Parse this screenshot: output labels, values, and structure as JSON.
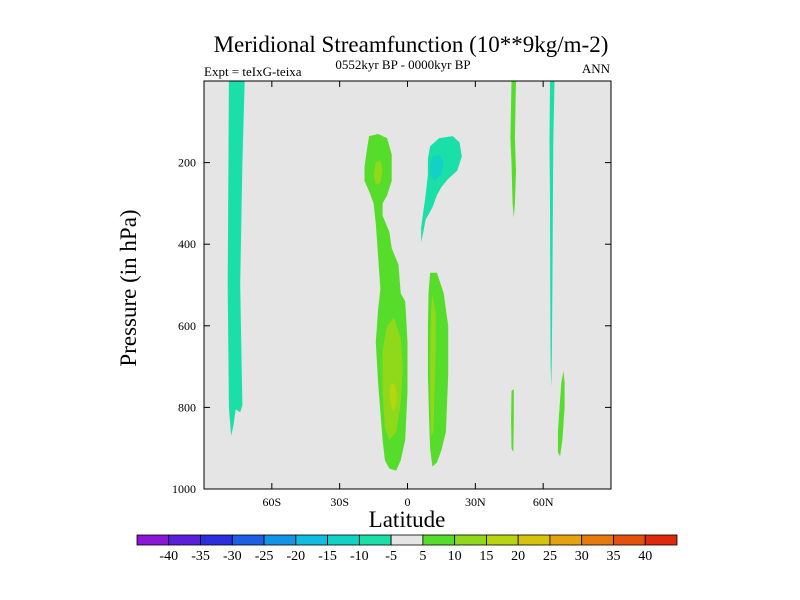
{
  "chart_data": {
    "type": "heatmap",
    "title": "Meridional Streamfunction (10**9kg/m-2)",
    "subtitle_left": "Expt = teIxG-teixa",
    "subtitle_center": "0552kyr BP - 0000kyr BP",
    "subtitle_right": "ANN",
    "xlabel": "Latitude",
    "ylabel": "Pressure (in hPa)",
    "xlim": [
      -90,
      90
    ],
    "ylim": [
      1000,
      0
    ],
    "y_inverted": true,
    "x_ticks": [
      {
        "value": -60,
        "label": "60S"
      },
      {
        "value": -30,
        "label": "30S"
      },
      {
        "value": 0,
        "label": "0"
      },
      {
        "value": 30,
        "label": "30N"
      },
      {
        "value": 60,
        "label": "60N"
      }
    ],
    "y_ticks": [
      {
        "value": 200,
        "label": "200"
      },
      {
        "value": 400,
        "label": "400"
      },
      {
        "value": 600,
        "label": "600"
      },
      {
        "value": 800,
        "label": "800"
      },
      {
        "value": 1000,
        "label": "1000"
      }
    ],
    "background_color": "#e5e5e5",
    "colorbar": {
      "levels": [
        "-40",
        "-35",
        "-30",
        "-25",
        "-20",
        "-15",
        "-10",
        "-5",
        "5",
        "10",
        "15",
        "20",
        "25",
        "30",
        "35",
        "40"
      ],
      "colors": [
        "#8a16d8",
        "#5b1fdc",
        "#2c2fe0",
        "#1e5ee4",
        "#1494e6",
        "#10bde0",
        "#12d2c6",
        "#1ae0a8",
        "#e5e5e5",
        "#56dc2a",
        "#8fd81a",
        "#b9d512",
        "#d6c30e",
        "#e4a20c",
        "#e67a0c",
        "#e4510c",
        "#e0280e"
      ]
    },
    "contour_regions": [
      {
        "band": "-10 to -5",
        "color": "#1ae0a8",
        "points": [
          [
            -79,
            0
          ],
          [
            -72,
            0
          ],
          [
            -73,
            200
          ],
          [
            -74,
            500
          ],
          [
            -73,
            795
          ],
          [
            -74,
            812
          ],
          [
            -76,
            805
          ],
          [
            -77,
            845
          ],
          [
            -78,
            870
          ],
          [
            -79,
            800
          ],
          [
            -79.5,
            500
          ]
        ]
      },
      {
        "band": "5 to 10",
        "color": "#56dc2a",
        "points": [
          [
            -17,
            135
          ],
          [
            -13,
            130
          ],
          [
            -9,
            140
          ],
          [
            -7,
            180
          ],
          [
            -7,
            245
          ],
          [
            -9,
            280
          ],
          [
            -11,
            300
          ],
          [
            -11,
            330
          ],
          [
            -8,
            370
          ],
          [
            -7,
            410
          ],
          [
            -4,
            450
          ],
          [
            -3,
            520
          ],
          [
            -1,
            540
          ],
          [
            0,
            640
          ],
          [
            0,
            760
          ],
          [
            -1,
            880
          ],
          [
            -3,
            930
          ],
          [
            -5,
            955
          ],
          [
            -8,
            950
          ],
          [
            -10,
            930
          ],
          [
            -11,
            880
          ],
          [
            -13,
            740
          ],
          [
            -14,
            640
          ],
          [
            -13,
            560
          ],
          [
            -12,
            510
          ],
          [
            -13,
            430
          ],
          [
            -14,
            350
          ],
          [
            -15,
            300
          ],
          [
            -17,
            270
          ],
          [
            -19,
            245
          ],
          [
            -19,
            210
          ],
          [
            -18,
            170
          ]
        ]
      },
      {
        "band": "10 to 15",
        "color": "#8fd81a",
        "points": [
          [
            -14,
            200
          ],
          [
            -12,
            195
          ],
          [
            -11,
            220
          ],
          [
            -12,
            250
          ],
          [
            -14,
            255
          ],
          [
            -15,
            230
          ]
        ]
      },
      {
        "band": "10 to 15",
        "color": "#8fd81a",
        "points": [
          [
            -6,
            580
          ],
          [
            -3,
            630
          ],
          [
            -2,
            700
          ],
          [
            -3,
            790
          ],
          [
            -5,
            860
          ],
          [
            -8,
            880
          ],
          [
            -10,
            850
          ],
          [
            -11,
            760
          ],
          [
            -11,
            660
          ],
          [
            -9,
            600
          ]
        ]
      },
      {
        "band": "15 to 20",
        "color": "#b9d512",
        "points": [
          [
            -6,
            740
          ],
          [
            -5,
            760
          ],
          [
            -5,
            790
          ],
          [
            -6,
            810
          ],
          [
            -7,
            800
          ],
          [
            -8,
            770
          ],
          [
            -7.5,
            745
          ]
        ]
      },
      {
        "band": "5 to 10",
        "color": "#56dc2a",
        "points": [
          [
            10,
            470
          ],
          [
            13,
            470
          ],
          [
            16,
            520
          ],
          [
            18,
            600
          ],
          [
            18,
            720
          ],
          [
            17,
            860
          ],
          [
            15,
            905
          ],
          [
            13,
            935
          ],
          [
            11,
            945
          ],
          [
            10,
            900
          ],
          [
            9.5,
            820
          ],
          [
            9,
            720
          ],
          [
            9,
            600
          ],
          [
            9.3,
            520
          ]
        ]
      },
      {
        "band": "10 to 15",
        "color": "#8fd81a",
        "points": [
          [
            11,
            520
          ],
          [
            12.5,
            570
          ],
          [
            12.5,
            660
          ],
          [
            12,
            760
          ],
          [
            11.5,
            860
          ],
          [
            10.5,
            870
          ],
          [
            10,
            780
          ],
          [
            10,
            660
          ],
          [
            10.5,
            560
          ]
        ]
      },
      {
        "band": "-10 to -5",
        "color": "#1ae0a8",
        "points": [
          [
            10,
            160
          ],
          [
            14,
            140
          ],
          [
            20,
            135
          ],
          [
            23,
            150
          ],
          [
            24,
            185
          ],
          [
            22,
            220
          ],
          [
            18,
            240
          ],
          [
            15,
            260
          ],
          [
            13,
            280
          ],
          [
            11,
            310
          ],
          [
            8,
            340
          ],
          [
            7,
            370
          ],
          [
            6,
            395
          ],
          [
            6,
            360
          ],
          [
            7,
            320
          ],
          [
            8,
            280
          ],
          [
            9,
            230
          ],
          [
            9,
            190
          ]
        ]
      },
      {
        "band": "-15 to -10",
        "color": "#12d2c6",
        "points": [
          [
            11,
            185
          ],
          [
            14,
            180
          ],
          [
            16,
            200
          ],
          [
            15,
            230
          ],
          [
            12,
            245
          ],
          [
            10,
            232
          ],
          [
            10,
            205
          ]
        ]
      },
      {
        "band": "5 to 10",
        "color": "#56dc2a",
        "points": [
          [
            46,
            0
          ],
          [
            48,
            0
          ],
          [
            47.5,
            140
          ],
          [
            48,
            220
          ],
          [
            47.5,
            300
          ],
          [
            47,
            335
          ],
          [
            46.5,
            300
          ],
          [
            46,
            200
          ],
          [
            45.5,
            140
          ]
        ]
      },
      {
        "band": "5 to 10",
        "color": "#56dc2a",
        "points": [
          [
            46,
            760
          ],
          [
            47,
            755
          ],
          [
            47,
            830
          ],
          [
            46.8,
            910
          ],
          [
            46,
            900
          ],
          [
            45.8,
            830
          ]
        ]
      },
      {
        "band": "-10 to -5",
        "color": "#1ae0a8",
        "points": [
          [
            63,
            0
          ],
          [
            65,
            0
          ],
          [
            64.5,
            150
          ],
          [
            64.3,
            300
          ],
          [
            64.1,
            500
          ],
          [
            63.8,
            680
          ],
          [
            63.6,
            750
          ],
          [
            63.3,
            700
          ],
          [
            63.1,
            500
          ],
          [
            63,
            300
          ],
          [
            62.8,
            150
          ]
        ]
      },
      {
        "band": "5 to 10",
        "color": "#56dc2a",
        "points": [
          [
            68,
            740
          ],
          [
            69,
            710
          ],
          [
            69.5,
            740
          ],
          [
            69.5,
            800
          ],
          [
            68.5,
            880
          ],
          [
            67.5,
            920
          ],
          [
            66.5,
            910
          ],
          [
            66.5,
            860
          ],
          [
            67,
            820
          ]
        ]
      }
    ]
  }
}
